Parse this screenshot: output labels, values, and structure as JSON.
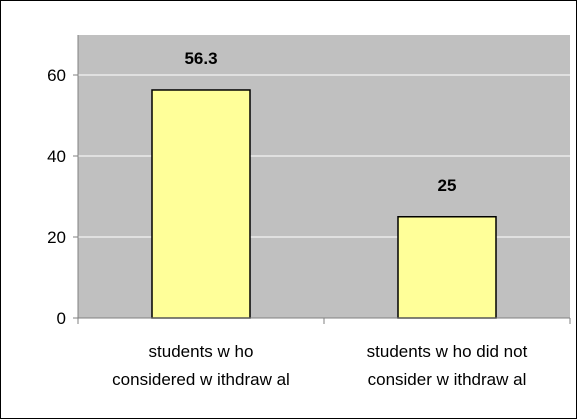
{
  "chart_data": {
    "type": "bar",
    "categories": [
      [
        "students w ho",
        "considered w ithdraw al"
      ],
      [
        "students w ho did not",
        "consider w ithdraw al"
      ]
    ],
    "values": [
      56.3,
      25
    ],
    "data_labels": [
      "56.3",
      "25"
    ],
    "title": "",
    "xlabel": "",
    "ylabel": "",
    "ylim": [
      0,
      60
    ],
    "yticks": [
      0,
      20,
      40,
      60
    ],
    "grid": true,
    "legend": "none",
    "colors": {
      "bar_fill": "#ffff99",
      "bar_stroke": "#000000",
      "plot_bg": "#c0c0c0",
      "gridline": "#ffffff",
      "frame": "#000000",
      "axis": "#808080"
    }
  }
}
